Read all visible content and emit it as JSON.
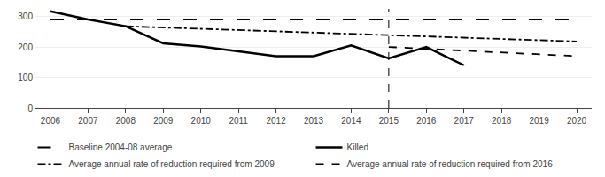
{
  "chart_data": {
    "type": "line",
    "series": [
      {
        "name": "Baseline 2004-08 average",
        "color": "black",
        "line_style": "longdash",
        "x": [
          2006,
          2020
        ],
        "values": [
          290,
          290
        ]
      },
      {
        "name": "Killed",
        "color": "black",
        "line_style": "solid",
        "x": [
          2006,
          2007,
          2008,
          2009,
          2010,
          2011,
          2012,
          2013,
          2014,
          2015,
          2016,
          2017
        ],
        "values": [
          317,
          290,
          268,
          212,
          202,
          186,
          170,
          170,
          205,
          163,
          200,
          140
        ]
      },
      {
        "name": "Average annual rate of reduction required from 2009",
        "color": "black",
        "line_style": "dashdot",
        "x": [
          2008,
          2020
        ],
        "values": [
          268,
          218
        ]
      },
      {
        "name": "Average annual rate of reduction required from 2016",
        "color": "black",
        "line_style": "dash",
        "x": [
          2015,
          2020
        ],
        "values": [
          200,
          170
        ]
      }
    ],
    "vline": 2015,
    "xlim": [
      2005.6,
      2020.4
    ],
    "xticks": [
      2006,
      2007,
      2008,
      2009,
      2010,
      2011,
      2012,
      2013,
      2014,
      2015,
      2016,
      2017,
      2018,
      2019,
      2020
    ],
    "ylim": [
      0,
      325
    ],
    "yticks": [
      0,
      100,
      200,
      300
    ],
    "grid": true,
    "legend": "bottom"
  }
}
